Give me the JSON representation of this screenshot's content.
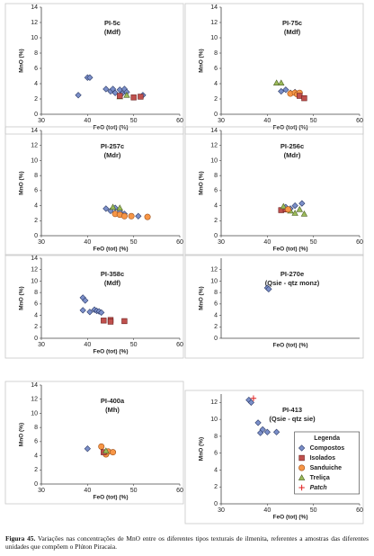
{
  "chart_data": [
    {
      "type": "scatter",
      "title": "PI-5c",
      "subtitle": "(Mdf)",
      "xlabel": "FeO (tot) (%)",
      "ylabel": "MnO (%)",
      "xlim": [
        30,
        60
      ],
      "ylim": [
        0,
        14
      ],
      "xticks": [
        30,
        40,
        50,
        60
      ],
      "yticks": [
        0,
        2,
        4,
        6,
        8,
        10,
        12,
        14
      ],
      "series": [
        {
          "name": "Compostos",
          "color": "#7b8fc9",
          "marker": "diamond",
          "x": [
            38,
            40,
            40.5,
            44,
            45,
            45.5,
            46,
            47,
            47.5,
            48,
            48.5,
            52
          ],
          "values": [
            2.5,
            4.8,
            4.8,
            3.3,
            3.0,
            3.3,
            2.8,
            3.2,
            2.7,
            3.3,
            2.9,
            2.5
          ]
        },
        {
          "name": "Treliça",
          "color": "#9bbb59",
          "marker": "triangle",
          "x": [
            47,
            48.5
          ],
          "values": [
            2.3,
            2.5
          ]
        },
        {
          "name": "Isolados",
          "color": "#c0504d",
          "marker": "square",
          "x": [
            47,
            50,
            51.5
          ],
          "values": [
            2.4,
            2.2,
            2.3
          ]
        }
      ]
    },
    {
      "type": "scatter",
      "title": "PI-75c",
      "subtitle": "(Mdf)",
      "xlabel": "FeO (tot) (%)",
      "ylabel": "MnO (%)",
      "xlim": [
        30,
        60
      ],
      "ylim": [
        0,
        14
      ],
      "xticks": [
        30,
        40,
        50,
        60
      ],
      "yticks": [
        0,
        2,
        4,
        6,
        8,
        10,
        12,
        14
      ],
      "series": [
        {
          "name": "Treliça",
          "color": "#9bbb59",
          "marker": "triangle",
          "x": [
            42,
            43
          ],
          "values": [
            4.1,
            4.1
          ]
        },
        {
          "name": "Compostos",
          "color": "#7b8fc9",
          "marker": "diamond",
          "x": [
            43,
            44,
            45,
            46
          ],
          "values": [
            3.0,
            3.2,
            2.8,
            2.9
          ]
        },
        {
          "name": "Sanduiche",
          "color": "#f79646",
          "marker": "circle",
          "x": [
            45,
            46,
            46.5,
            47
          ],
          "values": [
            2.7,
            2.8,
            2.6,
            2.8
          ]
        },
        {
          "name": "Isolados",
          "color": "#c0504d",
          "marker": "square",
          "x": [
            47,
            48
          ],
          "values": [
            2.4,
            2.1
          ]
        }
      ]
    },
    {
      "type": "scatter",
      "title": "PI-257c",
      "subtitle": "(Mdr)",
      "xlabel": "FeO (tot) (%)",
      "ylabel": "MnO (%)",
      "xlim": [
        30,
        60
      ],
      "ylim": [
        0,
        14
      ],
      "xticks": [
        30,
        40,
        50,
        60
      ],
      "yticks": [
        0,
        2,
        4,
        6,
        8,
        10,
        12,
        14
      ],
      "series": [
        {
          "name": "Compostos",
          "color": "#7b8fc9",
          "marker": "diamond",
          "x": [
            44,
            45,
            46,
            47,
            48,
            51
          ],
          "values": [
            3.6,
            3.3,
            3.7,
            3.2,
            2.9,
            2.6
          ]
        },
        {
          "name": "Treliça",
          "color": "#9bbb59",
          "marker": "triangle",
          "x": [
            45.5,
            47
          ],
          "values": [
            3.8,
            3.7
          ]
        },
        {
          "name": "Sanduiche",
          "color": "#f79646",
          "marker": "circle",
          "x": [
            46,
            47,
            48,
            49.5,
            53
          ],
          "values": [
            2.9,
            2.8,
            2.6,
            2.6,
            2.5
          ]
        }
      ]
    },
    {
      "type": "scatter",
      "title": "PI-256c",
      "subtitle": "(Mdr)",
      "xlabel": "FeO (tot) (%)",
      "ylabel": "MnO (%)",
      "xlim": [
        30,
        60
      ],
      "ylim": [
        0,
        14
      ],
      "xticks": [
        30,
        40,
        50,
        60
      ],
      "yticks": [
        0,
        2,
        4,
        6,
        8,
        10,
        12,
        14
      ],
      "series": [
        {
          "name": "Isolados",
          "color": "#c0504d",
          "marker": "square",
          "x": [
            43,
            44
          ],
          "values": [
            3.4,
            3.5
          ]
        },
        {
          "name": "Compostos",
          "color": "#7b8fc9",
          "marker": "diamond",
          "x": [
            44,
            45,
            46,
            47.5
          ],
          "values": [
            3.8,
            3.6,
            4.0,
            4.3
          ]
        },
        {
          "name": "Treliça",
          "color": "#9bbb59",
          "marker": "triangle",
          "x": [
            43.5,
            45,
            46,
            47,
            48
          ],
          "values": [
            3.9,
            3.3,
            3.0,
            3.5,
            2.9
          ]
        },
        {
          "name": "Sanduiche",
          "color": "#f79646",
          "marker": "circle",
          "x": [
            44.5
          ],
          "values": [
            3.5
          ]
        }
      ]
    },
    {
      "type": "scatter",
      "title": "PI-358c",
      "subtitle": "(Mdf)",
      "xlabel": "FeO (tot) (%)",
      "ylabel": "MnO (%)",
      "xlim": [
        30,
        60
      ],
      "ylim": [
        0,
        14
      ],
      "xticks": [
        30,
        40,
        50,
        60
      ],
      "yticks": [
        0,
        2,
        4,
        6,
        8,
        10,
        12,
        14
      ],
      "series": [
        {
          "name": "Compostos",
          "color": "#7b8fc9",
          "marker": "diamond",
          "x": [
            39,
            39.5,
            40.5,
            39,
            41.5,
            42,
            42.5,
            43
          ],
          "values": [
            7.1,
            6.6,
            4.6,
            4.9,
            5.0,
            4.8,
            4.7,
            4.5
          ]
        },
        {
          "name": "Isolados",
          "color": "#c0504d",
          "marker": "square",
          "x": [
            43.5,
            45,
            45,
            48
          ],
          "values": [
            3.1,
            3.2,
            2.9,
            3.0
          ]
        }
      ]
    },
    {
      "type": "scatter",
      "title": "PI-270e",
      "subtitle": "(Qsie - qtz monz)",
      "xlabel": "FeO (tot) (%)",
      "ylabel": "MnO (%)",
      "xlim": [
        30,
        60
      ],
      "ylim": [
        0,
        14
      ],
      "yticks": [
        0,
        2,
        4,
        6,
        8,
        10,
        12
      ],
      "series": [
        {
          "name": "Compostos",
          "color": "#7b8fc9",
          "marker": "diamond",
          "x": [
            40,
            40.3
          ],
          "values": [
            8.8,
            8.6
          ]
        }
      ]
    },
    {
      "type": "scatter",
      "title": "PI-400a",
      "subtitle": "(Mh)",
      "xlabel": "FeO (tot) (%)",
      "ylabel": "MnO (%)",
      "xlim": [
        30,
        60
      ],
      "ylim": [
        0,
        14
      ],
      "xticks": [
        30,
        40,
        50,
        60
      ],
      "yticks": [
        0,
        2,
        4,
        6,
        8,
        10,
        12,
        14
      ],
      "series": [
        {
          "name": "Compostos",
          "color": "#7b8fc9",
          "marker": "diamond",
          "x": [
            40
          ],
          "values": [
            5.0
          ]
        },
        {
          "name": "Sanduiche",
          "color": "#f79646",
          "marker": "circle",
          "x": [
            43,
            44,
            44.5,
            45.5
          ],
          "values": [
            5.3,
            4.2,
            4.6,
            4.5
          ]
        },
        {
          "name": "Isolados",
          "color": "#c0504d",
          "marker": "square",
          "x": [
            43.5
          ],
          "values": [
            4.5
          ]
        },
        {
          "name": "Treliça",
          "color": "#9bbb59",
          "marker": "triangle",
          "x": [
            44
          ],
          "values": [
            4.7
          ]
        }
      ]
    },
    {
      "type": "scatter",
      "title": "PI-413",
      "subtitle": "(Qsie - qtz sie)",
      "xlabel": "FeO (tot) (%)",
      "ylabel": "MnO (%)",
      "xlim": [
        30,
        60
      ],
      "ylim": [
        0,
        13
      ],
      "xticks": [
        30,
        40,
        50,
        60
      ],
      "yticks": [
        0,
        2,
        4,
        6,
        8,
        10,
        12
      ],
      "legend": true,
      "legend_title": "Legenda",
      "series": [
        {
          "name": "Compostos",
          "color": "#7b8fc9",
          "marker": "diamond",
          "x": [
            36,
            36.5,
            38,
            38.5,
            39,
            40,
            42
          ],
          "values": [
            12.3,
            12.0,
            9.6,
            8.4,
            8.8,
            8.5,
            8.5
          ]
        },
        {
          "name": "Isolados",
          "color": "#c0504d",
          "marker": "square",
          "x": [],
          "values": []
        },
        {
          "name": "Sanduiche",
          "color": "#f79646",
          "marker": "circle",
          "x": [],
          "values": []
        },
        {
          "name": "Treliça",
          "color": "#9bbb59",
          "marker": "triangle",
          "x": [],
          "values": []
        },
        {
          "name": "Patch",
          "color": "#e02020",
          "marker": "plus",
          "italic": true,
          "x": [
            37
          ],
          "values": [
            12.5
          ]
        }
      ]
    }
  ],
  "caption": {
    "label": "Figura 45.",
    "text": "Variações nas concentrações de MnO entre os diferentes tipos texturais de ilmenita, referentes a amostras das diferentes unidades que compõem o Plúton Piracaia."
  }
}
